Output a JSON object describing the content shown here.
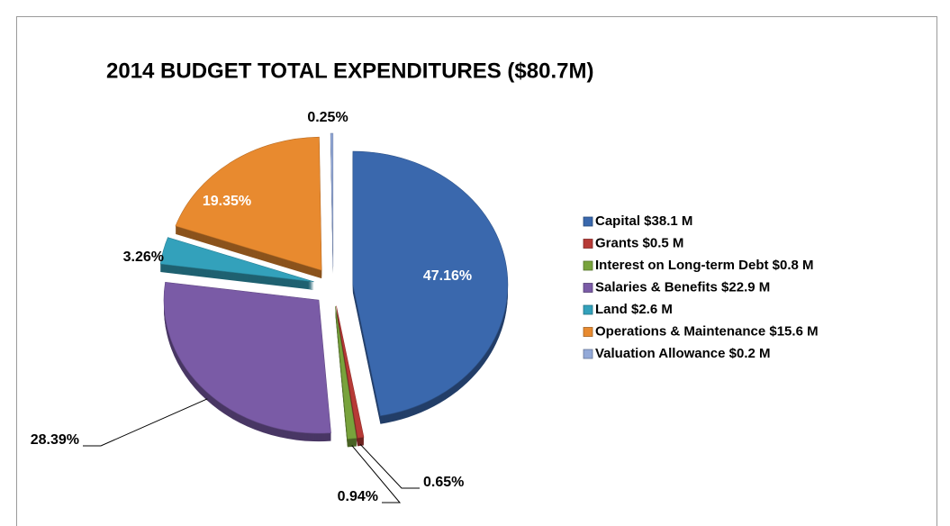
{
  "chart_data": {
    "type": "pie",
    "title": "2014 BUDGET TOTAL EXPENDITURES ($80.7M)",
    "categories": [
      "Capital $38.1 M",
      "Grants $0.5 M",
      "Interest on Long-term Debt $0.8 M",
      "Salaries & Benefits $22.9 M",
      "Land $2.6 M",
      "Operations & Maintenance $15.6 M",
      "Valuation Allowance $0.2 M"
    ],
    "values": [
      47.16,
      0.65,
      0.94,
      28.39,
      3.26,
      19.35,
      0.25
    ],
    "value_labels": [
      "47.16%",
      "0.65%",
      "0.94%",
      "28.39%",
      "3.26%",
      "19.35%",
      "0.25%"
    ],
    "colors": [
      "#3a68ad",
      "#b73a36",
      "#78a33c",
      "#7a5ba6",
      "#33a1bb",
      "#e88a2f",
      "#93a9d8"
    ],
    "legend": "right"
  }
}
